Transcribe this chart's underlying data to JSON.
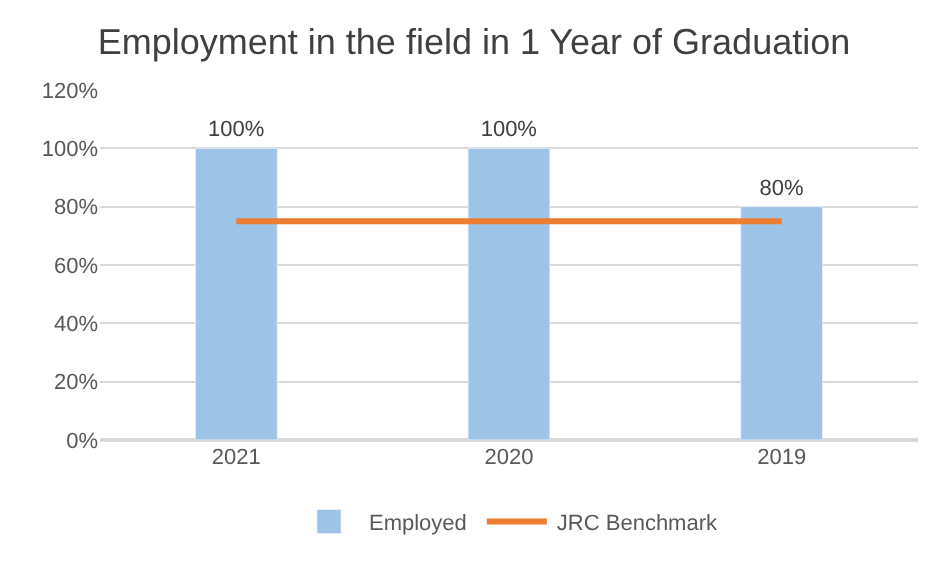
{
  "chart_data": {
    "type": "bar",
    "title": "Employment in the field in 1 Year of Graduation",
    "categories": [
      "2021",
      "2020",
      "2019"
    ],
    "series": [
      {
        "name": "Employed",
        "color": "#9dc3e6",
        "values": [
          100,
          100,
          80
        ],
        "value_labels": [
          "100%",
          "100%",
          "80%"
        ]
      },
      {
        "name": "JRC Benchmark",
        "type": "line",
        "color": "#ed7d31",
        "values": [
          75,
          75,
          75
        ],
        "marker": "none",
        "line_style": "solid"
      }
    ],
    "ylim": [
      0,
      120
    ],
    "yticks": [
      {
        "value": 0,
        "label": "0%"
      },
      {
        "value": 20,
        "label": "20%"
      },
      {
        "value": 40,
        "label": "40%"
      },
      {
        "value": 60,
        "label": "60%"
      },
      {
        "value": 80,
        "label": "80%"
      },
      {
        "value": 100,
        "label": "100%"
      },
      {
        "value": 120,
        "label": "120%"
      }
    ],
    "grid": "y",
    "legend": "bottom"
  }
}
